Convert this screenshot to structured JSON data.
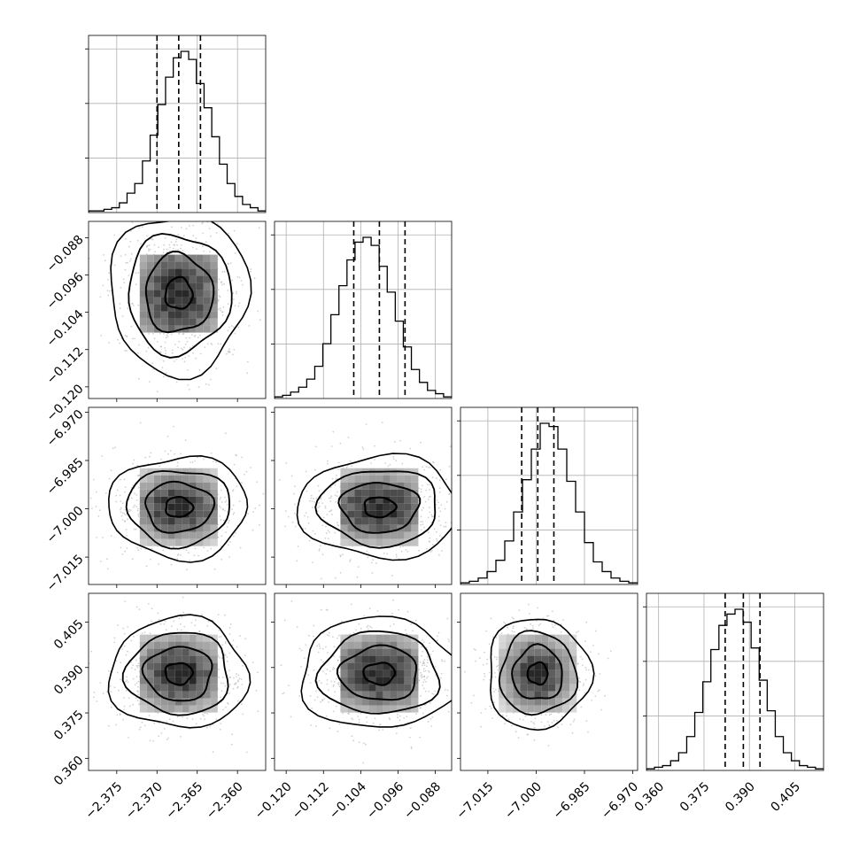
{
  "chart_data": {
    "type": "corner",
    "parameters": [
      {
        "range": [
          -2.3785,
          -2.3565
        ],
        "x_ticks": [
          "−2.375",
          "−2.370",
          "−2.365",
          "−2.360"
        ],
        "x_tick_values": [
          -2.375,
          -2.37,
          -2.365,
          -2.36
        ]
      },
      {
        "range": [
          -0.1225,
          -0.0845
        ],
        "x_ticks": [
          "−0.120",
          "−0.112",
          "−0.104",
          "−0.096",
          "−0.088"
        ],
        "x_tick_values": [
          -0.12,
          -0.112,
          -0.104,
          -0.096,
          -0.088
        ],
        "y_ticks": [
          "−0.088",
          "−0.096",
          "−0.104",
          "−0.112",
          "−0.120"
        ],
        "y_tick_values": [
          -0.088,
          -0.096,
          -0.104,
          -0.112,
          -0.12
        ]
      },
      {
        "range": [
          -7.0235,
          -6.9685
        ],
        "x_ticks": [
          "−7.015",
          "−7.000",
          "−6.985",
          "−6.970"
        ],
        "x_tick_values": [
          -7.015,
          -7.0,
          -6.985,
          -6.97
        ],
        "y_ticks": [
          "−6.970",
          "−6.985",
          "−7.000",
          "−7.015"
        ],
        "y_tick_values": [
          -6.97,
          -6.985,
          -7.0,
          -7.015
        ]
      },
      {
        "range": [
          0.356,
          0.4145
        ],
        "x_ticks": [
          "0.360",
          "0.375",
          "0.390",
          "0.405"
        ],
        "x_tick_values": [
          0.36,
          0.375,
          0.39,
          0.405
        ],
        "y_ticks": [
          "0.405",
          "0.390",
          "0.375",
          "0.360"
        ],
        "y_tick_values": [
          0.405,
          0.39,
          0.375,
          0.36
        ]
      }
    ],
    "quantiles": [
      {
        "lower": -2.37,
        "median": -2.3673,
        "upper": -2.3646
      },
      {
        "lower": -0.1055,
        "median": -0.1,
        "upper": -0.0945
      },
      {
        "lower": -7.0045,
        "median": -6.9995,
        "upper": -6.9945
      },
      {
        "lower": 0.382,
        "median": 0.388,
        "upper": 0.3935
      }
    ],
    "histograms": [
      [
        1,
        1,
        2,
        3,
        6,
        12,
        18,
        32,
        48,
        67,
        84,
        96,
        100,
        95,
        80,
        65,
        47,
        30,
        18,
        10,
        5,
        3,
        1
      ],
      [
        1,
        2,
        4,
        7,
        12,
        20,
        34,
        52,
        70,
        86,
        97,
        100,
        95,
        82,
        66,
        48,
        32,
        18,
        10,
        5,
        3,
        1
      ],
      [
        1,
        2,
        4,
        8,
        15,
        27,
        45,
        65,
        84,
        100,
        98,
        84,
        64,
        45,
        26,
        14,
        8,
        4,
        2,
        1
      ],
      [
        1,
        2,
        3,
        6,
        11,
        21,
        36,
        55,
        75,
        90,
        97,
        100,
        92,
        76,
        56,
        37,
        21,
        11,
        6,
        3,
        2,
        1
      ]
    ],
    "pairs": [
      {
        "row": 1,
        "col": 0,
        "center": [
          -2.3673,
          -0.1
        ],
        "spread": [
          0.004,
          0.008
        ]
      },
      {
        "row": 2,
        "col": 0,
        "center": [
          -2.3673,
          -6.9995
        ],
        "spread": [
          0.004,
          0.0074
        ]
      },
      {
        "row": 2,
        "col": 1,
        "center": [
          -0.1,
          -6.9995
        ],
        "spread": [
          0.008,
          0.0074
        ]
      },
      {
        "row": 3,
        "col": 0,
        "center": [
          -2.3673,
          0.388
        ],
        "spread": [
          0.004,
          0.0085
        ]
      },
      {
        "row": 3,
        "col": 1,
        "center": [
          -0.1,
          0.388
        ],
        "spread": [
          0.008,
          0.0085
        ]
      },
      {
        "row": 3,
        "col": 2,
        "center": [
          -6.9995,
          0.388
        ],
        "spread": [
          0.0074,
          0.0085
        ]
      }
    ],
    "grid": true,
    "colors": {
      "line": "#000000",
      "grid": "#b0b0b0",
      "scatter": "#9a9a9a"
    }
  }
}
